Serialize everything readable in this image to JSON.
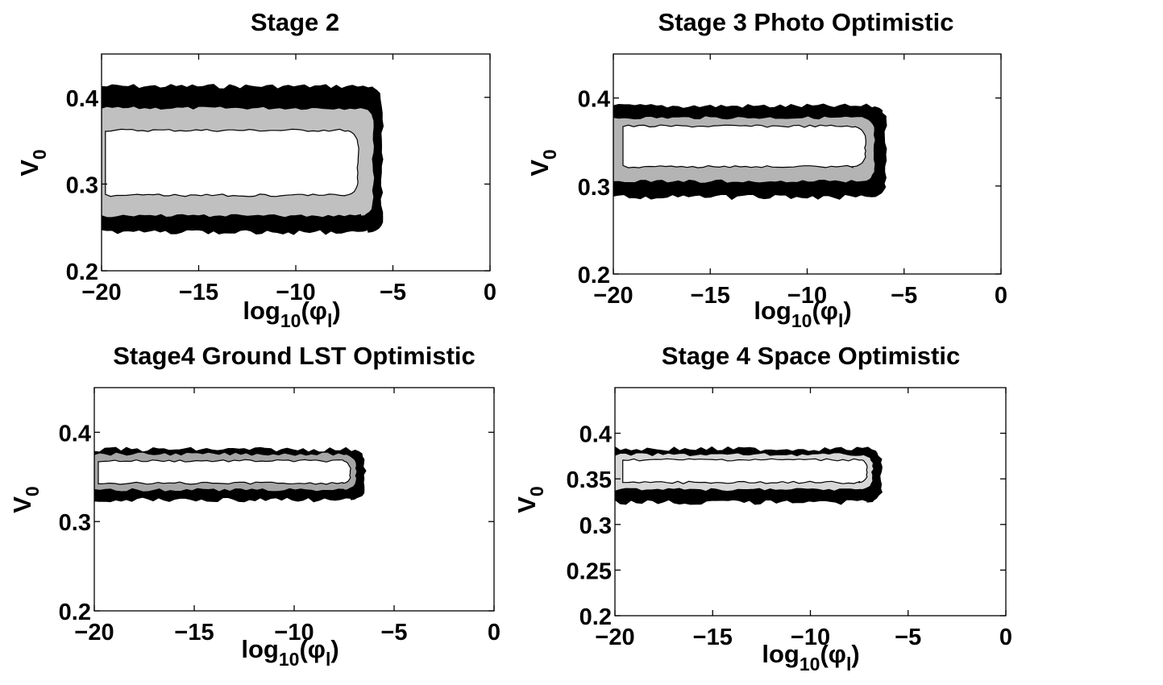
{
  "figure_title": "",
  "chart_data": [
    {
      "type": "contour",
      "title": "Stage 2",
      "xlabel": "log10(φl)",
      "ylabel": "V0",
      "xlim": [
        -20,
        0
      ],
      "ylim": [
        0.2,
        0.45
      ],
      "xticks": [
        -20,
        -15,
        -10,
        -5,
        0
      ],
      "xtick_labels": [
        "−20",
        "−15",
        "−10",
        "−5",
        "0"
      ],
      "yticks": [
        0.2,
        0.3,
        0.4
      ],
      "ytick_labels": [
        "0.2",
        "0.3",
        "0.4"
      ],
      "levels": [
        {
          "name": "outer",
          "fill": "#000000",
          "x": [
            -20,
            -5.6
          ],
          "y": [
            0.245,
            0.412
          ]
        },
        {
          "name": "middle",
          "fill": "#c0c0c0",
          "x": [
            -20,
            -6.0
          ],
          "y": [
            0.263,
            0.388
          ]
        },
        {
          "name": "inner",
          "fill": "#ffffff",
          "x": [
            -19.8,
            -6.8
          ],
          "y": [
            0.287,
            0.362
          ]
        }
      ]
    },
    {
      "type": "contour",
      "title": "Stage 3 Photo Optimistic",
      "xlabel": "log10(φl)",
      "ylabel": "V0",
      "xlim": [
        -20,
        0
      ],
      "ylim": [
        0.2,
        0.45
      ],
      "xticks": [
        -20,
        -15,
        -10,
        -5,
        0
      ],
      "xtick_labels": [
        "−20",
        "−15",
        "−10",
        "−5",
        "0"
      ],
      "yticks": [
        0.2,
        0.3,
        0.4
      ],
      "ytick_labels": [
        "0.2",
        "0.3",
        "0.4"
      ],
      "levels": [
        {
          "name": "outer",
          "fill": "#000000",
          "x": [
            -20,
            -6.0
          ],
          "y": [
            0.288,
            0.39
          ]
        },
        {
          "name": "middle",
          "fill": "#b4b4b4",
          "x": [
            -20,
            -6.5
          ],
          "y": [
            0.305,
            0.378
          ]
        },
        {
          "name": "inner",
          "fill": "#ffffff",
          "x": [
            -19.5,
            -7.0
          ],
          "y": [
            0.322,
            0.368
          ]
        }
      ]
    },
    {
      "type": "contour",
      "title": "Stage4 Ground LST Optimistic",
      "xlabel": "log10(φl)",
      "ylabel": "V0",
      "xlim": [
        -20,
        0
      ],
      "ylim": [
        0.2,
        0.45
      ],
      "xticks": [
        -20,
        -15,
        -10,
        -5,
        0
      ],
      "xtick_labels": [
        "−20",
        "−15",
        "−10",
        "−5",
        "0"
      ],
      "yticks": [
        0.2,
        0.3,
        0.4
      ],
      "ytick_labels": [
        "0.2",
        "0.3",
        "0.4"
      ],
      "levels": [
        {
          "name": "outer",
          "fill": "#000000",
          "x": [
            -20,
            -6.5
          ],
          "y": [
            0.325,
            0.38
          ]
        },
        {
          "name": "middle",
          "fill": "#a6a6a6",
          "x": [
            -20,
            -6.9
          ],
          "y": [
            0.335,
            0.376
          ]
        },
        {
          "name": "inner",
          "fill": "#ffffff",
          "x": [
            -19.8,
            -7.2
          ],
          "y": [
            0.343,
            0.368
          ]
        }
      ]
    },
    {
      "type": "contour",
      "title": "Stage 4 Space Optimistic",
      "xlabel": "log10(φl)",
      "ylabel": "V0",
      "xlim": [
        -20,
        0
      ],
      "ylim": [
        0.2,
        0.45
      ],
      "xticks": [
        -20,
        -15,
        -10,
        -5,
        0
      ],
      "xtick_labels": [
        "−20",
        "−15",
        "−10",
        "−5",
        "0"
      ],
      "yticks": [
        0.2,
        0.25,
        0.3,
        0.35,
        0.4
      ],
      "ytick_labels": [
        "0.2",
        "0.25",
        "0.3",
        "0.35",
        "0.4"
      ],
      "levels": [
        {
          "name": "outer",
          "fill": "#000000",
          "x": [
            -20,
            -6.4
          ],
          "y": [
            0.325,
            0.382
          ]
        },
        {
          "name": "middle",
          "fill": "#d8d8d8",
          "x": [
            -20,
            -6.8
          ],
          "y": [
            0.338,
            0.377
          ]
        },
        {
          "name": "inner",
          "fill": "#ffffff",
          "x": [
            -19.6,
            -7.1
          ],
          "y": [
            0.346,
            0.371
          ]
        }
      ]
    }
  ]
}
